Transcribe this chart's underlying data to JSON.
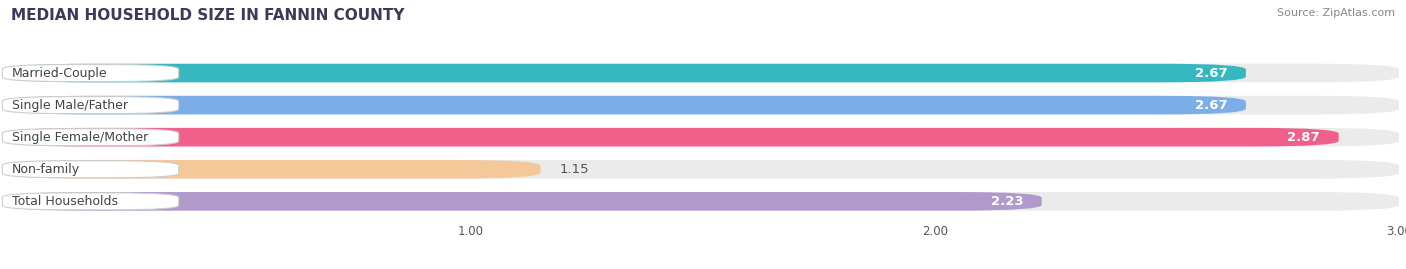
{
  "title": "MEDIAN HOUSEHOLD SIZE IN FANNIN COUNTY",
  "source": "Source: ZipAtlas.com",
  "categories": [
    "Married-Couple",
    "Single Male/Father",
    "Single Female/Mother",
    "Non-family",
    "Total Households"
  ],
  "values": [
    2.67,
    2.67,
    2.87,
    1.15,
    2.23
  ],
  "bar_colors": [
    "#35b8c0",
    "#7baee8",
    "#f0608a",
    "#f5c89a",
    "#b09acc"
  ],
  "label_inside": [
    true,
    true,
    true,
    false,
    true
  ],
  "xlim": [
    0,
    3.0
  ],
  "xticks": [
    1.0,
    2.0,
    3.0
  ],
  "background_color": "#ffffff",
  "bar_bg_color": "#ebebeb",
  "title_fontsize": 11,
  "bar_height": 0.58,
  "bar_gap": 1.0,
  "value_fontsize": 9.5,
  "label_fontsize": 9,
  "source_fontsize": 8
}
